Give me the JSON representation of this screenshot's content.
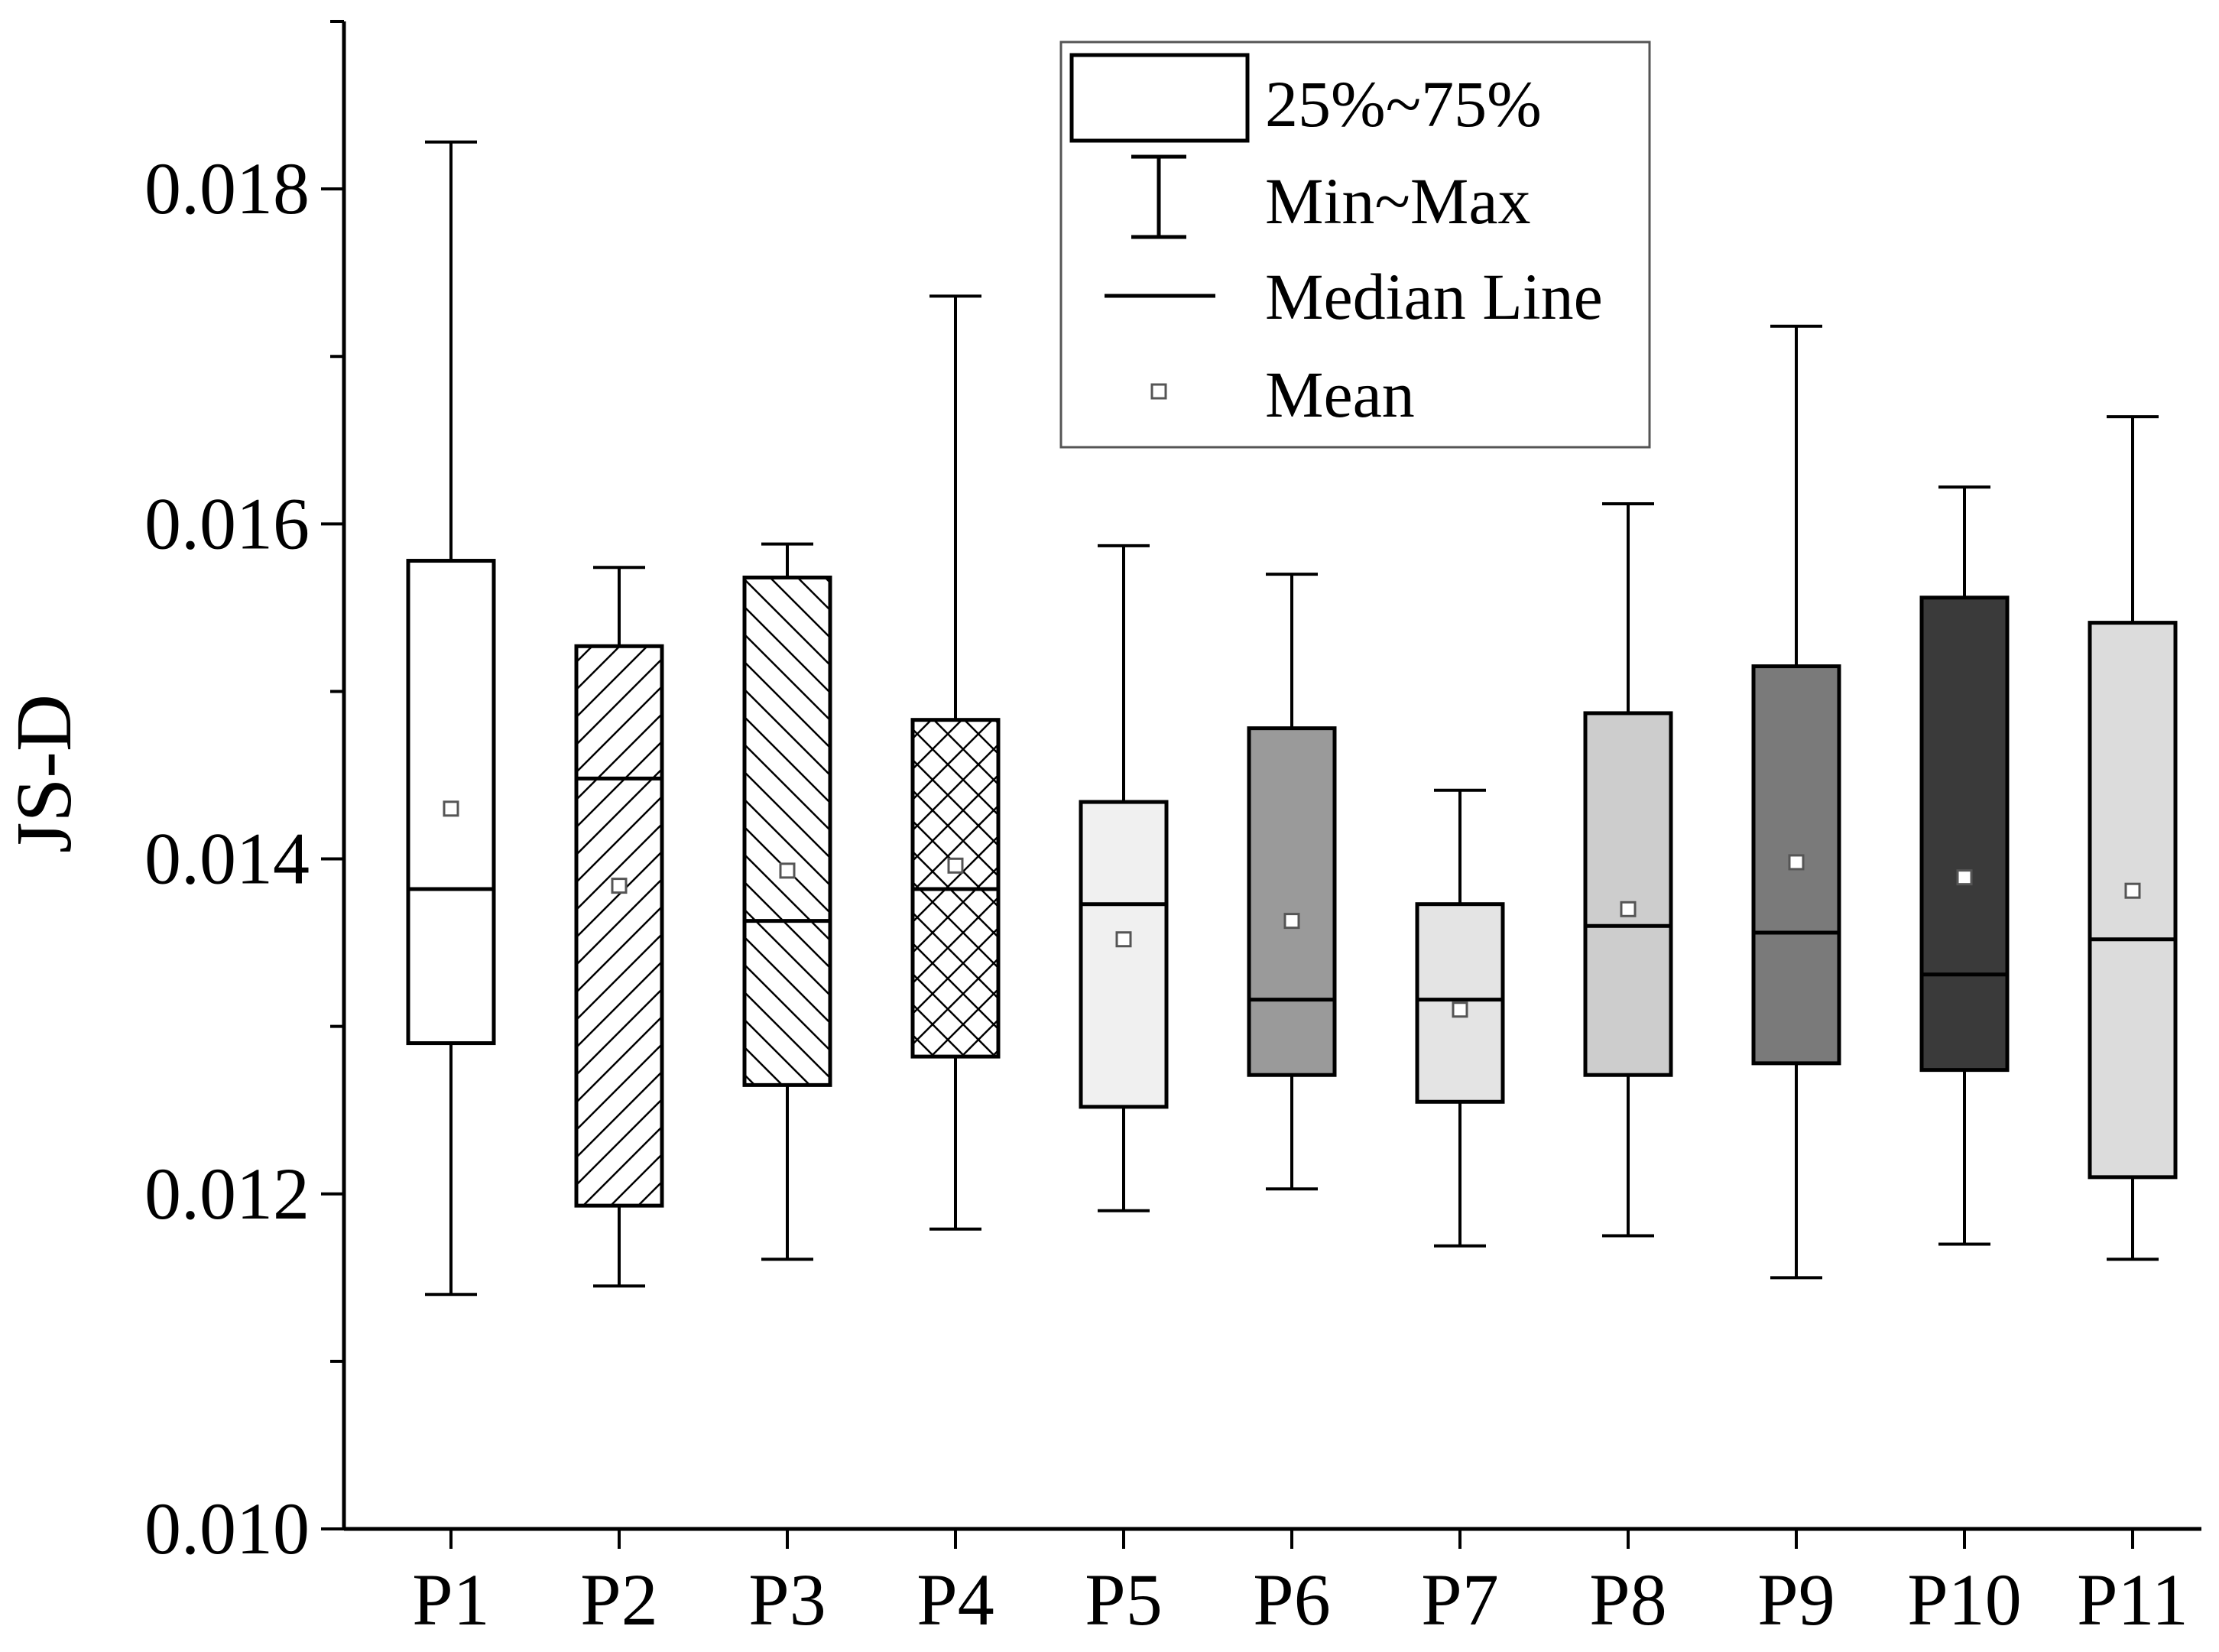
{
  "chart_data": {
    "type": "box",
    "ylabel": "JS-D",
    "xlabel": "",
    "ylim": [
      0.01,
      0.019
    ],
    "yticks": [
      0.01,
      0.012,
      0.014,
      0.016,
      0.018
    ],
    "ytick_labels": [
      "0.010",
      "0.012",
      "0.014",
      "0.016",
      "0.018"
    ],
    "categories": [
      "P1",
      "P2",
      "P3",
      "P4",
      "P5",
      "P6",
      "P7",
      "P8",
      "P9",
      "P10",
      "P11"
    ],
    "boxes": [
      {
        "name": "P1",
        "min": 0.0114,
        "q1": 0.0129,
        "median": 0.01382,
        "q3": 0.01578,
        "max": 0.01828,
        "mean": 0.0143,
        "fill": "none",
        "fill_color": "#ffffff"
      },
      {
        "name": "P2",
        "min": 0.01145,
        "q1": 0.01193,
        "median": 0.01448,
        "q3": 0.01527,
        "max": 0.01574,
        "mean": 0.01384,
        "fill": "hatch-fwd",
        "fill_color": "#ffffff"
      },
      {
        "name": "P3",
        "min": 0.01161,
        "q1": 0.01265,
        "median": 0.01363,
        "q3": 0.01568,
        "max": 0.01588,
        "mean": 0.01393,
        "fill": "hatch-back",
        "fill_color": "#ffffff"
      },
      {
        "name": "P4",
        "min": 0.01179,
        "q1": 0.01282,
        "median": 0.01382,
        "q3": 0.01483,
        "max": 0.01736,
        "mean": 0.01396,
        "fill": "crosshatch",
        "fill_color": "#ffffff"
      },
      {
        "name": "P5",
        "min": 0.0119,
        "q1": 0.01252,
        "median": 0.01373,
        "q3": 0.01434,
        "max": 0.01587,
        "mean": 0.01352,
        "fill": "solid",
        "fill_color": "#f0f0f0"
      },
      {
        "name": "P6",
        "min": 0.01203,
        "q1": 0.01271,
        "median": 0.01316,
        "q3": 0.01478,
        "max": 0.0157,
        "mean": 0.01363,
        "fill": "solid",
        "fill_color": "#9a9a9a"
      },
      {
        "name": "P7",
        "min": 0.01169,
        "q1": 0.01255,
        "median": 0.01316,
        "q3": 0.01373,
        "max": 0.01441,
        "mean": 0.0131,
        "fill": "solid",
        "fill_color": "#e4e4e4"
      },
      {
        "name": "P8",
        "min": 0.01175,
        "q1": 0.01271,
        "median": 0.0136,
        "q3": 0.01487,
        "max": 0.01612,
        "mean": 0.0137,
        "fill": "solid",
        "fill_color": "#cdcdcd"
      },
      {
        "name": "P9",
        "min": 0.0115,
        "q1": 0.01278,
        "median": 0.01356,
        "q3": 0.01515,
        "max": 0.01718,
        "mean": 0.01398,
        "fill": "solid",
        "fill_color": "#7a7a7a"
      },
      {
        "name": "P10",
        "min": 0.0117,
        "q1": 0.01274,
        "median": 0.01331,
        "q3": 0.01556,
        "max": 0.01622,
        "mean": 0.01389,
        "fill": "solid",
        "fill_color": "#3a3a3a"
      },
      {
        "name": "P11",
        "min": 0.01161,
        "q1": 0.0121,
        "median": 0.01352,
        "q3": 0.01541,
        "max": 0.01664,
        "mean": 0.01381,
        "fill": "solid",
        "fill_color": "#dcdcdc"
      }
    ],
    "legend": {
      "position": "top-center",
      "entries": [
        {
          "symbol": "box",
          "label": "25%~75%"
        },
        {
          "symbol": "whisker",
          "label": "Min~Max"
        },
        {
          "symbol": "line",
          "label": "Median Line"
        },
        {
          "symbol": "square",
          "label": "Mean"
        }
      ]
    }
  }
}
